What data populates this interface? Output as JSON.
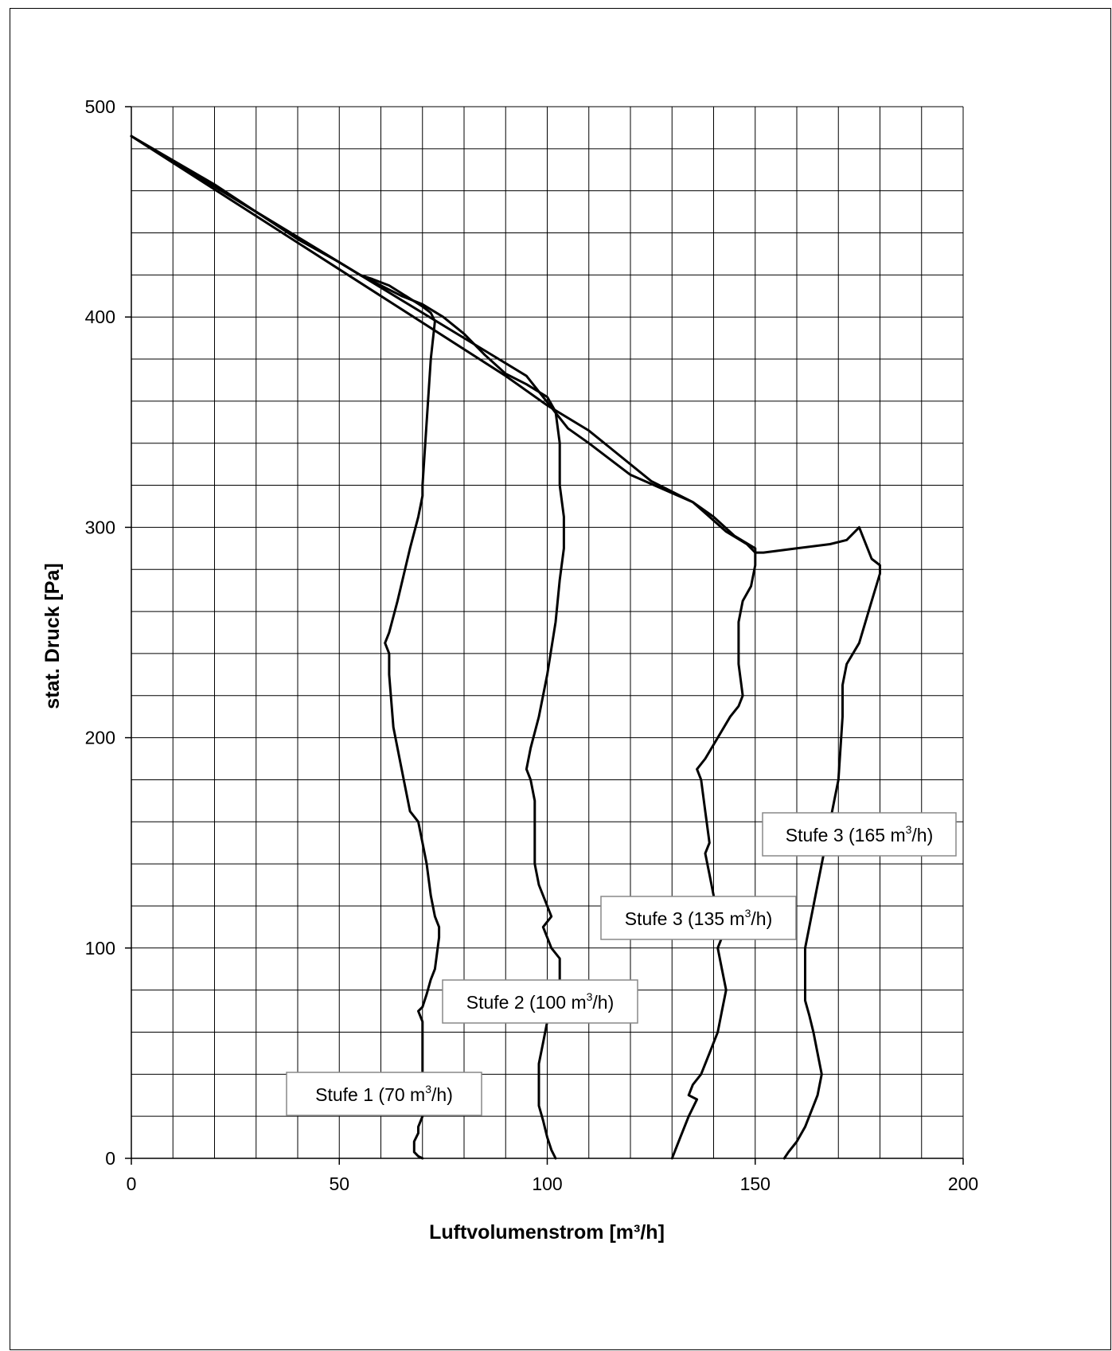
{
  "chart_data": {
    "type": "line",
    "title": "",
    "xlabel": "Luftvolumenstrom [m³/h]",
    "ylabel": "stat. Druck [Pa]",
    "xlim": [
      0,
      200
    ],
    "ylim": [
      0,
      500
    ],
    "x_ticks": [
      "0",
      "50",
      "100",
      "150",
      "200"
    ],
    "y_ticks": [
      "0",
      "100",
      "200",
      "300",
      "400",
      "500"
    ],
    "grid": true,
    "x_minor_step": 10,
    "y_minor_step": 20,
    "annotations": [
      {
        "id": "s1",
        "text": "Stufe 1 (70 m",
        "sup": "3",
        "tail": "/h)"
      },
      {
        "id": "s2",
        "text": "Stufe 2 (100 m",
        "sup": "3",
        "tail": "/h)"
      },
      {
        "id": "s3a",
        "text": "Stufe 3 (135 m",
        "sup": "3",
        "tail": "/h)"
      },
      {
        "id": "s3b",
        "text": "Stufe 3 (165 m",
        "sup": "3",
        "tail": "/h)"
      }
    ],
    "series": [
      {
        "line_color": "#000000",
        "x": [
          0,
          20,
          40,
          50,
          55,
          58,
          62,
          66,
          70,
          72,
          73,
          72,
          71,
          70,
          70,
          69,
          67,
          64,
          62,
          61,
          62,
          62,
          63,
          65,
          67,
          69,
          70,
          71,
          72,
          73,
          74,
          74,
          73,
          72,
          71,
          70,
          69,
          70,
          70,
          70,
          70,
          70,
          69,
          69,
          68,
          68,
          69,
          70
        ],
        "y": [
          486,
          463,
          437,
          426,
          420,
          418,
          415,
          410,
          405,
          402,
          398,
          380,
          350,
          320,
          315,
          305,
          290,
          265,
          250,
          245,
          240,
          230,
          205,
          185,
          165,
          160,
          150,
          140,
          125,
          115,
          110,
          105,
          90,
          85,
          78,
          72,
          70,
          65,
          55,
          40,
          25,
          20,
          15,
          12,
          8,
          3,
          1,
          0
        ]
      },
      {
        "line_color": "#000000",
        "x": [
          0,
          20,
          40,
          55,
          65,
          70,
          75,
          80,
          85,
          90,
          95,
          100,
          102,
          103,
          103,
          104,
          104,
          103,
          102,
          100,
          98,
          96,
          95,
          96,
          97,
          97,
          97,
          98,
          99,
          100,
          101,
          99,
          100,
          101,
          103,
          103,
          101,
          100,
          99,
          98,
          98,
          98,
          99,
          100,
          101,
          102
        ],
        "y": [
          486,
          462,
          438,
          420,
          410,
          406,
          400,
          392,
          382,
          373,
          368,
          362,
          355,
          340,
          320,
          305,
          290,
          275,
          255,
          230,
          210,
          195,
          185,
          180,
          170,
          160,
          140,
          130,
          125,
          120,
          115,
          110,
          105,
          100,
          95,
          85,
          75,
          65,
          55,
          45,
          35,
          25,
          18,
          10,
          4,
          0
        ]
      },
      {
        "line_color": "#000000",
        "x": [
          0,
          30,
          60,
          80,
          95,
          105,
          110,
          120,
          128,
          135,
          140,
          145,
          150,
          150,
          149,
          147,
          146,
          146,
          147,
          146,
          144,
          141,
          138,
          136,
          137,
          138,
          139,
          138,
          139,
          140,
          141,
          142,
          141,
          142,
          143,
          142,
          141,
          139,
          137,
          135,
          134,
          136,
          134,
          132,
          131,
          130
        ],
        "y": [
          486,
          450,
          414,
          390,
          372,
          347,
          340,
          325,
          318,
          312,
          305,
          296,
          290,
          282,
          272,
          265,
          255,
          235,
          220,
          215,
          210,
          200,
          190,
          185,
          180,
          165,
          150,
          145,
          135,
          125,
          115,
          105,
          100,
          90,
          80,
          70,
          60,
          50,
          40,
          35,
          30,
          28,
          20,
          10,
          5,
          0
        ]
      },
      {
        "line_color": "#000000",
        "x": [
          0,
          30,
          60,
          90,
          100,
          110,
          125,
          135,
          143,
          148,
          150,
          152,
          160,
          168,
          172,
          174,
          175,
          176,
          178,
          180,
          180,
          178,
          175,
          172,
          171,
          171,
          170,
          169,
          167,
          165,
          164,
          163,
          162,
          162,
          162,
          163,
          164,
          165,
          166,
          165,
          164,
          163,
          162,
          160,
          158,
          157
        ],
        "y": [
          486,
          448,
          410,
          372,
          358,
          346,
          322,
          312,
          298,
          292,
          288,
          288,
          290,
          292,
          294,
          298,
          300,
          295,
          285,
          282,
          278,
          265,
          245,
          235,
          225,
          210,
          180,
          170,
          150,
          130,
          120,
          110,
          100,
          90,
          75,
          68,
          60,
          50,
          40,
          30,
          25,
          20,
          15,
          8,
          3,
          0
        ]
      }
    ]
  }
}
